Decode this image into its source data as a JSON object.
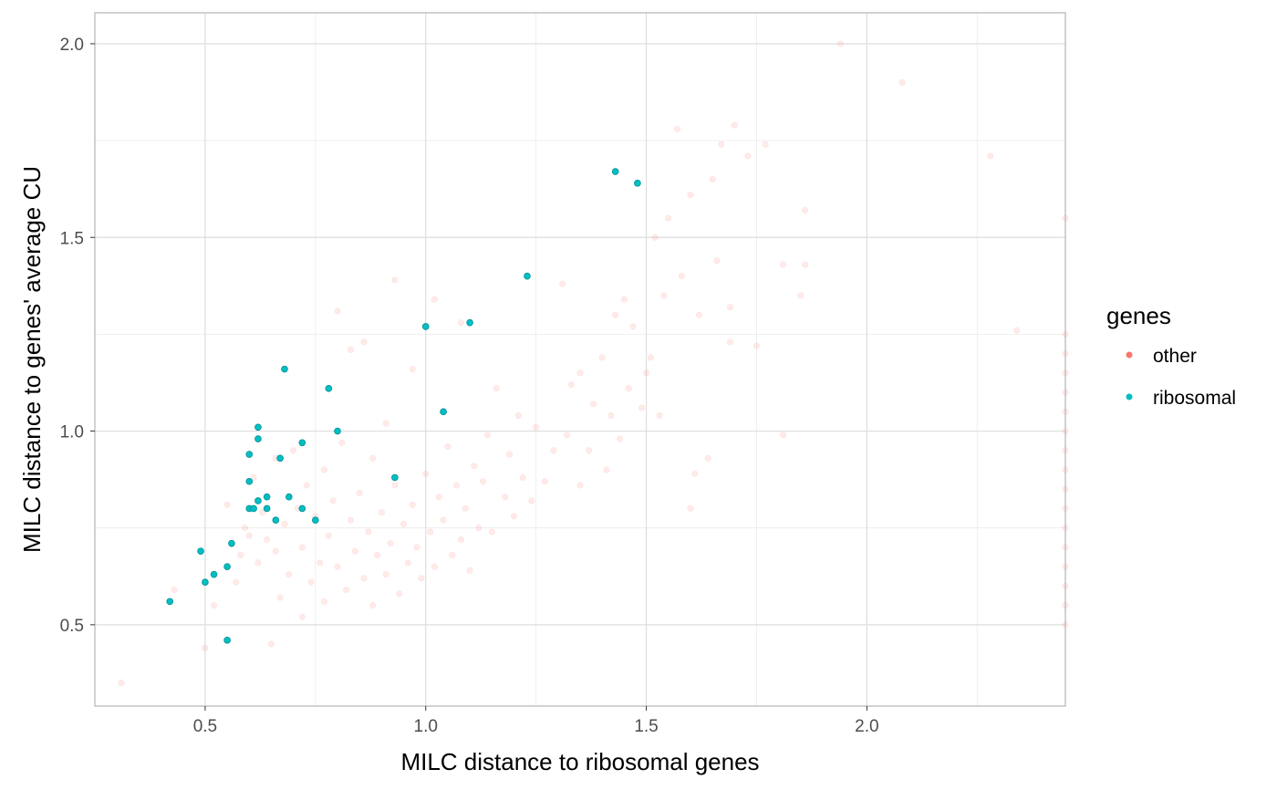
{
  "chart_data": {
    "type": "scatter",
    "title": "",
    "xlabel": "MILC distance to ribosomal genes",
    "ylabel": "MILC distance to genes' average CU",
    "xlim": [
      0.25,
      2.45
    ],
    "ylim": [
      0.29,
      2.08
    ],
    "x_ticks": [
      0.5,
      1.0,
      1.5,
      2.0
    ],
    "x_tick_labels": [
      "0.5",
      "1.0",
      "1.5",
      "2.0"
    ],
    "y_ticks": [
      0.5,
      1.0,
      1.5,
      2.0
    ],
    "y_tick_labels": [
      "0.5",
      "1.0",
      "1.5",
      "2.0"
    ],
    "grid": true,
    "legend": {
      "title": "genes",
      "placement": "right",
      "entries": [
        {
          "label": "other",
          "color": "#F8766D"
        },
        {
          "label": "ribosomal",
          "color": "#00BFC4"
        }
      ]
    },
    "series": [
      {
        "name": "other",
        "color": "#F8766D",
        "opacity": 0.15,
        "points": [
          [
            0.31,
            0.35
          ],
          [
            0.43,
            0.59
          ],
          [
            0.5,
            0.44
          ],
          [
            0.52,
            0.55
          ],
          [
            0.55,
            0.81
          ],
          [
            0.57,
            0.61
          ],
          [
            0.58,
            0.68
          ],
          [
            0.59,
            0.75
          ],
          [
            0.6,
            0.73
          ],
          [
            0.61,
            0.88
          ],
          [
            0.62,
            0.66
          ],
          [
            0.63,
            0.79
          ],
          [
            0.64,
            0.72
          ],
          [
            0.65,
            0.45
          ],
          [
            0.66,
            0.93
          ],
          [
            0.66,
            0.69
          ],
          [
            0.67,
            0.57
          ],
          [
            0.68,
            0.76
          ],
          [
            0.69,
            0.63
          ],
          [
            0.7,
            0.95
          ],
          [
            0.71,
            0.8
          ],
          [
            0.72,
            0.7
          ],
          [
            0.72,
            0.52
          ],
          [
            0.73,
            0.86
          ],
          [
            0.74,
            0.61
          ],
          [
            0.75,
            0.78
          ],
          [
            0.76,
            0.66
          ],
          [
            0.77,
            0.9
          ],
          [
            0.77,
            0.56
          ],
          [
            0.78,
            0.73
          ],
          [
            0.79,
            0.82
          ],
          [
            0.8,
            0.65
          ],
          [
            0.8,
            1.31
          ],
          [
            0.81,
            0.97
          ],
          [
            0.82,
            0.59
          ],
          [
            0.83,
            0.77
          ],
          [
            0.83,
            1.21
          ],
          [
            0.84,
            0.69
          ],
          [
            0.85,
            0.84
          ],
          [
            0.86,
            0.62
          ],
          [
            0.86,
            1.23
          ],
          [
            0.87,
            0.74
          ],
          [
            0.88,
            0.93
          ],
          [
            0.88,
            0.55
          ],
          [
            0.89,
            0.68
          ],
          [
            0.9,
            0.79
          ],
          [
            0.91,
            0.63
          ],
          [
            0.91,
            1.02
          ],
          [
            0.92,
            0.71
          ],
          [
            0.93,
            0.86
          ],
          [
            0.93,
            1.39
          ],
          [
            0.94,
            0.58
          ],
          [
            0.95,
            0.76
          ],
          [
            0.96,
            0.66
          ],
          [
            0.97,
            0.81
          ],
          [
            0.97,
            1.16
          ],
          [
            0.98,
            0.7
          ],
          [
            0.99,
            0.62
          ],
          [
            1.0,
            0.89
          ],
          [
            1.01,
            0.74
          ],
          [
            1.02,
            1.34
          ],
          [
            1.02,
            0.65
          ],
          [
            1.03,
            0.83
          ],
          [
            1.04,
            0.77
          ],
          [
            1.05,
            0.96
          ],
          [
            1.06,
            0.68
          ],
          [
            1.07,
            0.86
          ],
          [
            1.08,
            0.72
          ],
          [
            1.08,
            1.28
          ],
          [
            1.09,
            0.8
          ],
          [
            1.1,
            0.64
          ],
          [
            1.11,
            0.91
          ],
          [
            1.12,
            0.75
          ],
          [
            1.13,
            0.87
          ],
          [
            1.14,
            0.99
          ],
          [
            1.15,
            0.74
          ],
          [
            1.16,
            1.11
          ],
          [
            1.18,
            0.83
          ],
          [
            1.19,
            0.94
          ],
          [
            1.2,
            0.78
          ],
          [
            1.21,
            1.04
          ],
          [
            1.22,
            0.88
          ],
          [
            1.24,
            0.82
          ],
          [
            1.25,
            1.01
          ],
          [
            1.27,
            0.87
          ],
          [
            1.29,
            0.95
          ],
          [
            1.31,
            1.38
          ],
          [
            1.32,
            0.99
          ],
          [
            1.33,
            1.12
          ],
          [
            1.35,
            0.86
          ],
          [
            1.35,
            1.15
          ],
          [
            1.37,
            0.95
          ],
          [
            1.38,
            1.07
          ],
          [
            1.4,
            1.19
          ],
          [
            1.41,
            0.9
          ],
          [
            1.42,
            1.04
          ],
          [
            1.43,
            1.3
          ],
          [
            1.44,
            0.98
          ],
          [
            1.45,
            1.34
          ],
          [
            1.46,
            1.11
          ],
          [
            1.47,
            1.27
          ],
          [
            1.49,
            1.06
          ],
          [
            1.5,
            1.15
          ],
          [
            1.51,
            1.19
          ],
          [
            1.52,
            1.5
          ],
          [
            1.53,
            1.04
          ],
          [
            1.54,
            1.35
          ],
          [
            1.55,
            1.55
          ],
          [
            1.57,
            1.78
          ],
          [
            1.58,
            1.4
          ],
          [
            1.6,
            1.61
          ],
          [
            1.6,
            0.8
          ],
          [
            1.61,
            0.89
          ],
          [
            1.62,
            1.3
          ],
          [
            1.64,
            0.93
          ],
          [
            1.65,
            1.65
          ],
          [
            1.66,
            1.44
          ],
          [
            1.67,
            1.74
          ],
          [
            1.69,
            1.23
          ],
          [
            1.69,
            1.32
          ],
          [
            1.7,
            1.79
          ],
          [
            1.73,
            1.71
          ],
          [
            1.75,
            1.22
          ],
          [
            1.77,
            1.74
          ],
          [
            1.81,
            1.43
          ],
          [
            1.81,
            0.99
          ],
          [
            1.85,
            1.35
          ],
          [
            1.86,
            1.57
          ],
          [
            1.86,
            1.43
          ],
          [
            1.94,
            2.0
          ],
          [
            2.08,
            1.9
          ],
          [
            2.28,
            1.71
          ],
          [
            2.34,
            1.26
          ],
          [
            2.45,
            0.5
          ],
          [
            2.45,
            0.55
          ],
          [
            2.45,
            0.6
          ],
          [
            2.45,
            0.65
          ],
          [
            2.45,
            0.7
          ],
          [
            2.45,
            0.75
          ],
          [
            2.45,
            0.8
          ],
          [
            2.45,
            0.85
          ],
          [
            2.45,
            0.9
          ],
          [
            2.45,
            0.95
          ],
          [
            2.45,
            1.0
          ],
          [
            2.45,
            1.05
          ],
          [
            2.45,
            1.1
          ],
          [
            2.45,
            1.15
          ],
          [
            2.45,
            1.2
          ],
          [
            2.45,
            1.25
          ],
          [
            2.45,
            1.55
          ]
        ]
      },
      {
        "name": "ribosomal",
        "color": "#00BFC4",
        "opacity": 1,
        "points": [
          [
            0.42,
            0.56
          ],
          [
            0.49,
            0.69
          ],
          [
            0.5,
            0.61
          ],
          [
            0.52,
            0.63
          ],
          [
            0.55,
            0.46
          ],
          [
            0.55,
            0.65
          ],
          [
            0.56,
            0.71
          ],
          [
            0.6,
            0.8
          ],
          [
            0.6,
            0.87
          ],
          [
            0.6,
            0.94
          ],
          [
            0.61,
            0.8
          ],
          [
            0.62,
            0.82
          ],
          [
            0.62,
            0.98
          ],
          [
            0.62,
            1.01
          ],
          [
            0.64,
            0.8
          ],
          [
            0.64,
            0.83
          ],
          [
            0.66,
            0.77
          ],
          [
            0.67,
            0.93
          ],
          [
            0.68,
            1.16
          ],
          [
            0.69,
            0.83
          ],
          [
            0.72,
            0.8
          ],
          [
            0.72,
            0.97
          ],
          [
            0.75,
            0.77
          ],
          [
            0.78,
            1.11
          ],
          [
            0.8,
            1.0
          ],
          [
            0.93,
            0.88
          ],
          [
            1.0,
            1.27
          ],
          [
            1.04,
            1.05
          ],
          [
            1.1,
            1.28
          ],
          [
            1.23,
            1.4
          ],
          [
            1.43,
            1.67
          ],
          [
            1.48,
            1.64
          ]
        ]
      }
    ]
  }
}
